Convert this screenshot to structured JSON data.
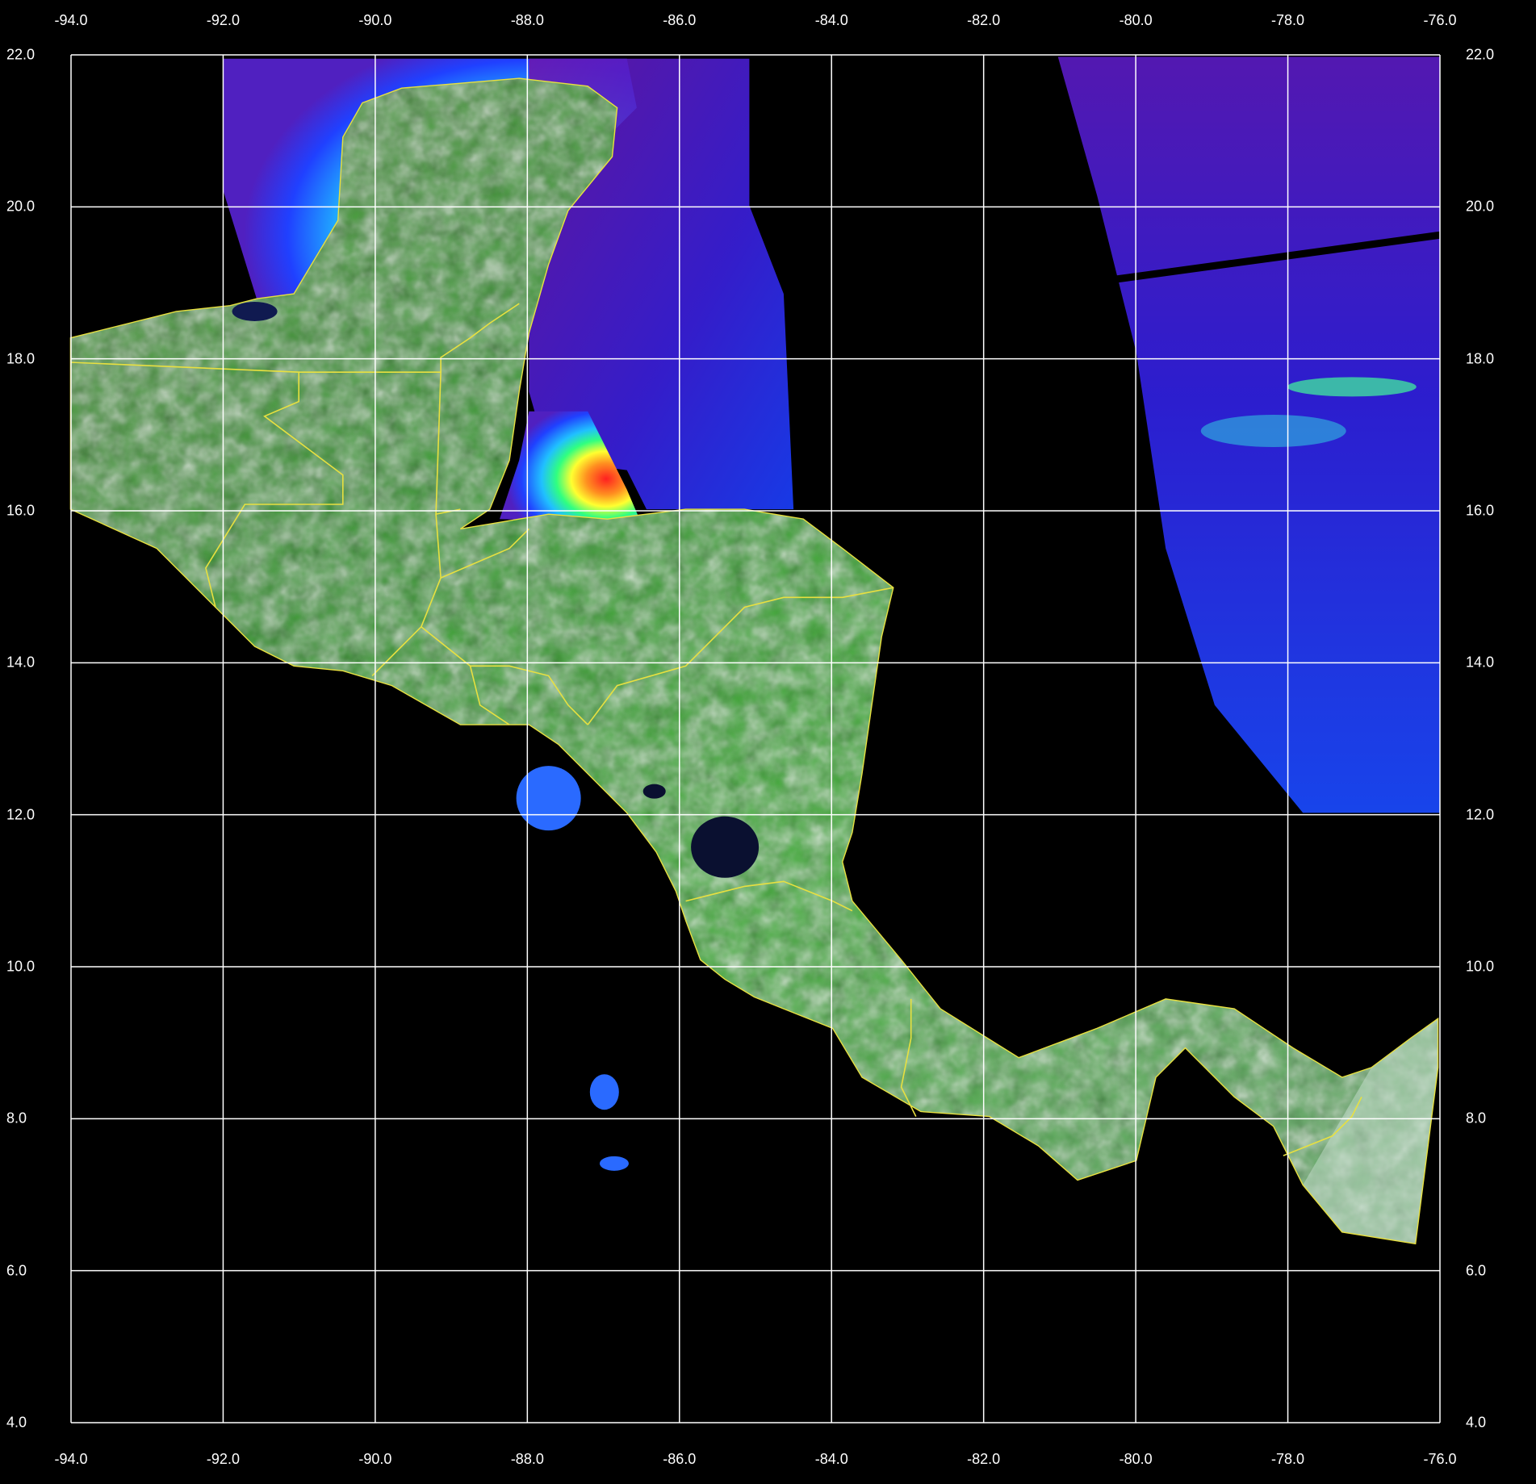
{
  "map": {
    "type": "satellite composite map (land reflectance + ocean color)",
    "extent": {
      "lon": [
        -94.0,
        -76.0
      ],
      "lat": [
        4.0,
        22.0
      ]
    },
    "grid": true,
    "grid_step_deg": 2.0,
    "border_color": "#e8e040",
    "grid_color": "#ffffff",
    "land_color": "#4aa040",
    "ocean_palette": [
      "#7a1fa0",
      "#2020ff",
      "#20a0ff",
      "#30ff80",
      "#ffff30",
      "#ff8020",
      "#ff2020"
    ]
  },
  "axes": {
    "x_ticks": [
      "-94.0",
      "-92.0",
      "-90.0",
      "-88.0",
      "-86.0",
      "-84.0",
      "-82.0",
      "-80.0",
      "-78.0",
      "-76.0"
    ],
    "y_ticks": [
      "22.0",
      "20.0",
      "18.0",
      "16.0",
      "14.0",
      "12.0",
      "10.0",
      "8.0",
      "6.0",
      "4.0"
    ]
  }
}
